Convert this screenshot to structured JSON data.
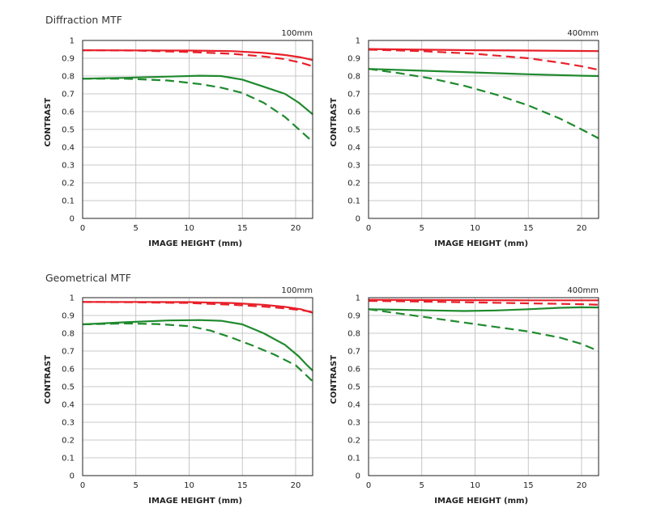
{
  "sections": [
    {
      "title": "Diffraction MTF"
    },
    {
      "title": "Geometrical MTF"
    }
  ],
  "colors": {
    "red": "#e8202a",
    "green": "#1f8a2e",
    "grid": "#b9b9b9",
    "frame": "#222222"
  },
  "chart_data": [
    {
      "type": "line",
      "section": "Diffraction MTF",
      "title": "100mm",
      "xlabel": "IMAGE HEIGHT (mm)",
      "ylabel": "CONTRAST",
      "xlim": [
        0,
        21.6
      ],
      "ylim": [
        0,
        1
      ],
      "xticks": [
        0,
        5,
        10,
        15,
        20
      ],
      "yticks": [
        0,
        0.1,
        0.2,
        0.3,
        0.4,
        0.5,
        0.6,
        0.7,
        0.8,
        0.9,
        1
      ],
      "grid": true,
      "series": [
        {
          "color": "red",
          "dash": false,
          "x": [
            0,
            5,
            10,
            14,
            17,
            19,
            20.5,
            21.6
          ],
          "y": [
            0.945,
            0.944,
            0.943,
            0.94,
            0.93,
            0.918,
            0.905,
            0.89
          ]
        },
        {
          "color": "red",
          "dash": true,
          "x": [
            0,
            5,
            10,
            14,
            17,
            19,
            20.5,
            21.6
          ],
          "y": [
            0.945,
            0.943,
            0.935,
            0.925,
            0.91,
            0.895,
            0.875,
            0.855
          ]
        },
        {
          "color": "green",
          "dash": false,
          "x": [
            0,
            4,
            8,
            11,
            13,
            15,
            17,
            19,
            20.3,
            21,
            21.6
          ],
          "y": [
            0.785,
            0.79,
            0.797,
            0.802,
            0.8,
            0.78,
            0.74,
            0.7,
            0.65,
            0.615,
            0.585
          ]
        },
        {
          "color": "green",
          "dash": true,
          "x": [
            0,
            4,
            8,
            11,
            13,
            15,
            17,
            19,
            20.5,
            21.6
          ],
          "y": [
            0.785,
            0.785,
            0.775,
            0.755,
            0.735,
            0.705,
            0.65,
            0.57,
            0.49,
            0.43
          ]
        }
      ]
    },
    {
      "type": "line",
      "section": "Diffraction MTF",
      "title": "400mm",
      "xlabel": "IMAGE HEIGHT (mm)",
      "ylabel": "CONTRAST",
      "xlim": [
        0,
        21.6
      ],
      "ylim": [
        0,
        1
      ],
      "xticks": [
        0,
        5,
        10,
        15,
        20
      ],
      "yticks": [
        0,
        0.1,
        0.2,
        0.3,
        0.4,
        0.5,
        0.6,
        0.7,
        0.8,
        0.9,
        1
      ],
      "grid": true,
      "series": [
        {
          "color": "red",
          "dash": false,
          "x": [
            0,
            5,
            10,
            15,
            20,
            21.6
          ],
          "y": [
            0.952,
            0.948,
            0.945,
            0.943,
            0.941,
            0.94
          ]
        },
        {
          "color": "red",
          "dash": true,
          "x": [
            0,
            5,
            10,
            15,
            18,
            20,
            21.6
          ],
          "y": [
            0.948,
            0.94,
            0.925,
            0.9,
            0.875,
            0.855,
            0.835
          ]
        },
        {
          "color": "green",
          "dash": false,
          "x": [
            0,
            5,
            10,
            15,
            20,
            21.6
          ],
          "y": [
            0.84,
            0.83,
            0.82,
            0.81,
            0.802,
            0.8
          ]
        },
        {
          "color": "green",
          "dash": true,
          "x": [
            0,
            3,
            6,
            9,
            12,
            15,
            18,
            20,
            21.6
          ],
          "y": [
            0.84,
            0.815,
            0.785,
            0.745,
            0.695,
            0.635,
            0.56,
            0.5,
            0.45
          ]
        }
      ]
    },
    {
      "type": "line",
      "section": "Geometrical MTF",
      "title": "100mm",
      "xlabel": "IMAGE HEIGHT (mm)",
      "ylabel": "CONTRAST",
      "xlim": [
        0,
        21.6
      ],
      "ylim": [
        0,
        1
      ],
      "xticks": [
        0,
        5,
        10,
        15,
        20
      ],
      "yticks": [
        0,
        0.1,
        0.2,
        0.3,
        0.4,
        0.5,
        0.6,
        0.7,
        0.8,
        0.9,
        1
      ],
      "grid": true,
      "series": [
        {
          "color": "red",
          "dash": false,
          "x": [
            0,
            5,
            10,
            14,
            17,
            19,
            20.5,
            21.6
          ],
          "y": [
            0.976,
            0.976,
            0.975,
            0.97,
            0.96,
            0.948,
            0.935,
            0.915
          ]
        },
        {
          "color": "red",
          "dash": true,
          "x": [
            0,
            5,
            10,
            14,
            17,
            19,
            20.5,
            21.6
          ],
          "y": [
            0.976,
            0.974,
            0.97,
            0.96,
            0.95,
            0.94,
            0.93,
            0.92
          ]
        },
        {
          "color": "green",
          "dash": false,
          "x": [
            0,
            4,
            8,
            11,
            13,
            15,
            17,
            19,
            20.3,
            21,
            21.6
          ],
          "y": [
            0.85,
            0.862,
            0.872,
            0.874,
            0.87,
            0.85,
            0.8,
            0.735,
            0.67,
            0.625,
            0.59
          ]
        },
        {
          "color": "green",
          "dash": true,
          "x": [
            0,
            4,
            7,
            10,
            12,
            14,
            16,
            18,
            20,
            21.6
          ],
          "y": [
            0.85,
            0.855,
            0.852,
            0.84,
            0.815,
            0.775,
            0.73,
            0.68,
            0.62,
            0.53
          ]
        }
      ]
    },
    {
      "type": "line",
      "section": "Geometrical MTF",
      "title": "400mm",
      "xlabel": "IMAGE HEIGHT (mm)",
      "ylabel": "CONTRAST",
      "xlim": [
        0,
        21.6
      ],
      "ylim": [
        0,
        1
      ],
      "xticks": [
        0,
        5,
        10,
        15,
        20
      ],
      "yticks": [
        0,
        0.1,
        0.2,
        0.3,
        0.4,
        0.5,
        0.6,
        0.7,
        0.8,
        0.9,
        1
      ],
      "grid": true,
      "series": [
        {
          "color": "red",
          "dash": false,
          "x": [
            0,
            5,
            10,
            15,
            20,
            21.6
          ],
          "y": [
            0.988,
            0.987,
            0.986,
            0.985,
            0.985,
            0.985
          ]
        },
        {
          "color": "red",
          "dash": true,
          "x": [
            0,
            5,
            10,
            15,
            20,
            21.6
          ],
          "y": [
            0.982,
            0.978,
            0.973,
            0.968,
            0.963,
            0.96
          ]
        },
        {
          "color": "green",
          "dash": false,
          "x": [
            0,
            3,
            6,
            9,
            12,
            15,
            18,
            20,
            21.6
          ],
          "y": [
            0.935,
            0.932,
            0.928,
            0.925,
            0.928,
            0.935,
            0.943,
            0.946,
            0.945
          ]
        },
        {
          "color": "green",
          "dash": true,
          "x": [
            0,
            3,
            6,
            9,
            12,
            15,
            18,
            20,
            21.6
          ],
          "y": [
            0.935,
            0.91,
            0.885,
            0.86,
            0.835,
            0.81,
            0.775,
            0.74,
            0.7
          ]
        }
      ]
    }
  ]
}
